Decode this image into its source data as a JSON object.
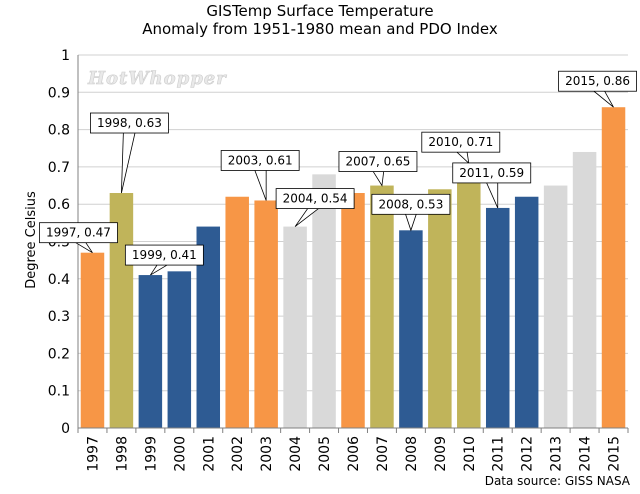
{
  "chart_data": {
    "type": "bar",
    "title": "GISTemp Surface Temperature",
    "subtitle": "Anomaly from 1951-1980 mean and PDO Index",
    "ylabel": "Degree Celsius",
    "xlabel": "",
    "ylim": [
      0,
      1
    ],
    "yticks": [
      "0",
      "0.1",
      "0.2",
      "0.3",
      "0.4",
      "0.5",
      "0.6",
      "0.7",
      "0.8",
      "0.9",
      "1"
    ],
    "grid": true,
    "categories": [
      "1997",
      "1998",
      "1999",
      "2000",
      "2001",
      "2002",
      "2003",
      "2004",
      "2005",
      "2006",
      "2007",
      "2008",
      "2009",
      "2010",
      "2011",
      "2012",
      "2013",
      "2014",
      "2015"
    ],
    "values": [
      0.47,
      0.63,
      0.41,
      0.42,
      0.54,
      0.62,
      0.61,
      0.54,
      0.68,
      0.63,
      0.65,
      0.53,
      0.64,
      0.71,
      0.59,
      0.62,
      0.65,
      0.74,
      0.86
    ],
    "bar_colors": [
      "#f79646",
      "#c0b45a",
      "#2e5b93",
      "#2e5b93",
      "#2e5b93",
      "#f79646",
      "#f79646",
      "#d9d9d9",
      "#d9d9d9",
      "#f79646",
      "#c0b45a",
      "#2e5b93",
      "#c0b45a",
      "#c0b45a",
      "#2e5b93",
      "#2e5b93",
      "#d9d9d9",
      "#d9d9d9",
      "#f79646"
    ],
    "annotations": [
      {
        "index": 0,
        "text": "1997, 0.47"
      },
      {
        "index": 1,
        "text": "1998, 0.63"
      },
      {
        "index": 2,
        "text": "1999, 0.41"
      },
      {
        "index": 6,
        "text": "2003, 0.61"
      },
      {
        "index": 7,
        "text": "2004, 0.54"
      },
      {
        "index": 10,
        "text": "2007, 0.65"
      },
      {
        "index": 11,
        "text": "2008, 0.53"
      },
      {
        "index": 13,
        "text": "2010, 0.71"
      },
      {
        "index": 14,
        "text": "2011, 0.59"
      },
      {
        "index": 18,
        "text": "2015, 0.86"
      }
    ]
  },
  "watermark": "HotWhopper",
  "source": "Data source: GISS NASA"
}
